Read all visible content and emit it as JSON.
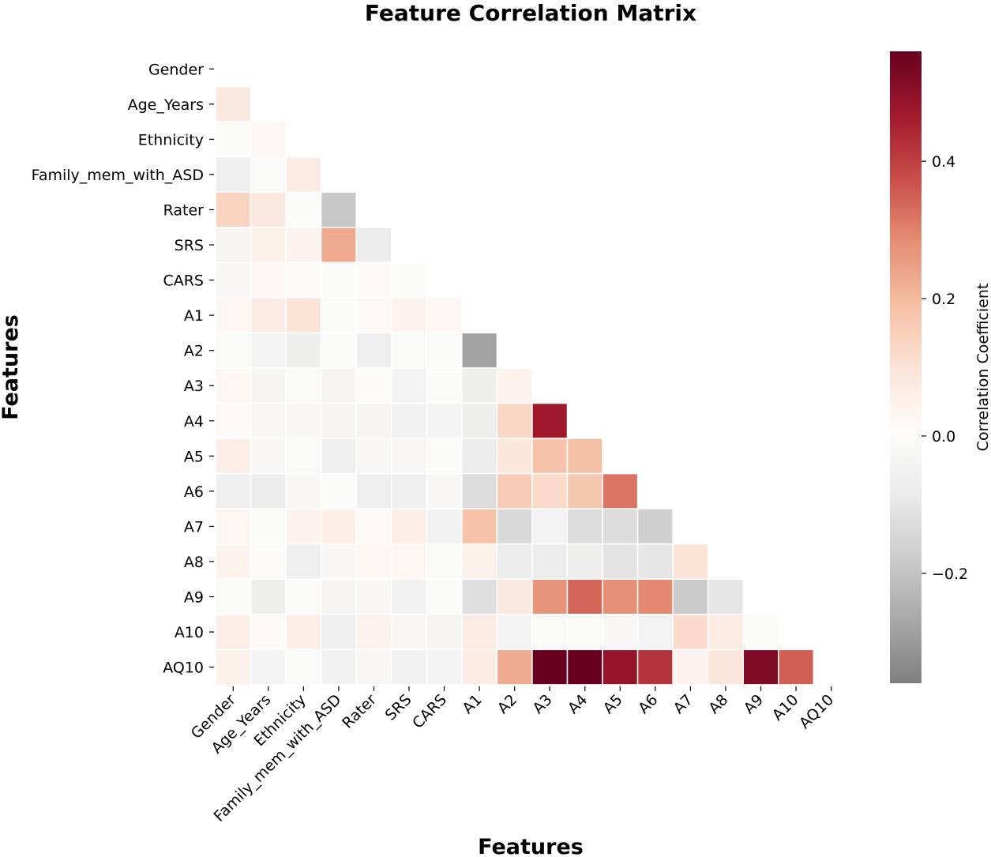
{
  "chart_data": {
    "type": "heatmap",
    "title": "Feature Correlation Matrix",
    "xlabel": "Features",
    "ylabel": "Features",
    "features": [
      "Gender",
      "Age_Years",
      "Ethnicity",
      "Family_mem_with_ASD",
      "Rater",
      "SRS",
      "CARS",
      "A1",
      "A2",
      "A3",
      "A4",
      "A5",
      "A6",
      "A7",
      "A8",
      "A9",
      "A10",
      "AQ10"
    ],
    "mask": "upper-triangle-including-diagonal",
    "matrix": [
      [
        null
      ],
      [
        0.08
      ],
      [
        0.0,
        0.03
      ],
      [
        -0.06,
        -0.01,
        0.07
      ],
      [
        0.14,
        0.08,
        0.0,
        -0.19
      ],
      [
        -0.03,
        0.05,
        0.04,
        0.23,
        -0.08
      ],
      [
        -0.02,
        0.03,
        0.01,
        0.0,
        0.02,
        0.0
      ],
      [
        0.03,
        0.07,
        0.1,
        0.0,
        0.02,
        0.04,
        0.03
      ],
      [
        -0.01,
        -0.04,
        -0.07,
        0.0,
        -0.06,
        -0.01,
        -0.01,
        -0.28
      ],
      [
        0.03,
        -0.03,
        -0.01,
        -0.03,
        0.01,
        -0.04,
        0.0,
        -0.07,
        0.04
      ],
      [
        0.02,
        -0.02,
        -0.02,
        -0.03,
        -0.03,
        -0.05,
        -0.04,
        -0.07,
        0.13,
        0.47
      ],
      [
        0.06,
        -0.02,
        -0.01,
        -0.06,
        -0.02,
        -0.02,
        0.0,
        -0.08,
        0.09,
        0.18,
        0.19
      ],
      [
        -0.06,
        -0.08,
        -0.02,
        0.0,
        -0.06,
        -0.06,
        -0.02,
        -0.13,
        0.16,
        0.12,
        0.17,
        0.32
      ],
      [
        0.03,
        0.0,
        0.04,
        0.06,
        0.02,
        0.06,
        -0.05,
        0.18,
        -0.14,
        -0.04,
        -0.13,
        -0.13,
        -0.17
      ],
      [
        0.04,
        0.01,
        -0.06,
        -0.02,
        0.03,
        0.03,
        -0.01,
        0.05,
        -0.08,
        -0.08,
        -0.07,
        -0.11,
        -0.1,
        0.1
      ],
      [
        -0.01,
        -0.07,
        -0.01,
        -0.03,
        -0.02,
        -0.05,
        -0.01,
        -0.12,
        0.08,
        0.27,
        0.34,
        0.28,
        0.29,
        -0.18,
        -0.1
      ],
      [
        0.06,
        0.02,
        0.06,
        -0.06,
        0.04,
        -0.02,
        -0.03,
        0.07,
        -0.04,
        -0.01,
        -0.01,
        -0.02,
        -0.04,
        0.12,
        0.07,
        0.0
      ],
      [
        0.05,
        -0.04,
        -0.01,
        -0.05,
        -0.02,
        -0.05,
        -0.04,
        0.07,
        0.23,
        0.57,
        0.6,
        0.49,
        0.42,
        0.04,
        0.09,
        0.52,
        0.35
      ]
    ],
    "vmin": -0.36,
    "vmax": 0.56,
    "colormap": "RdGy_r",
    "colorbar_label": "Correlation Coefficient",
    "colorbar_ticks": [
      -0.2,
      0.0,
      0.2,
      0.4
    ],
    "colorbar_tick_labels": [
      "−0.2",
      "0.0",
      "0.2",
      "0.4"
    ]
  }
}
